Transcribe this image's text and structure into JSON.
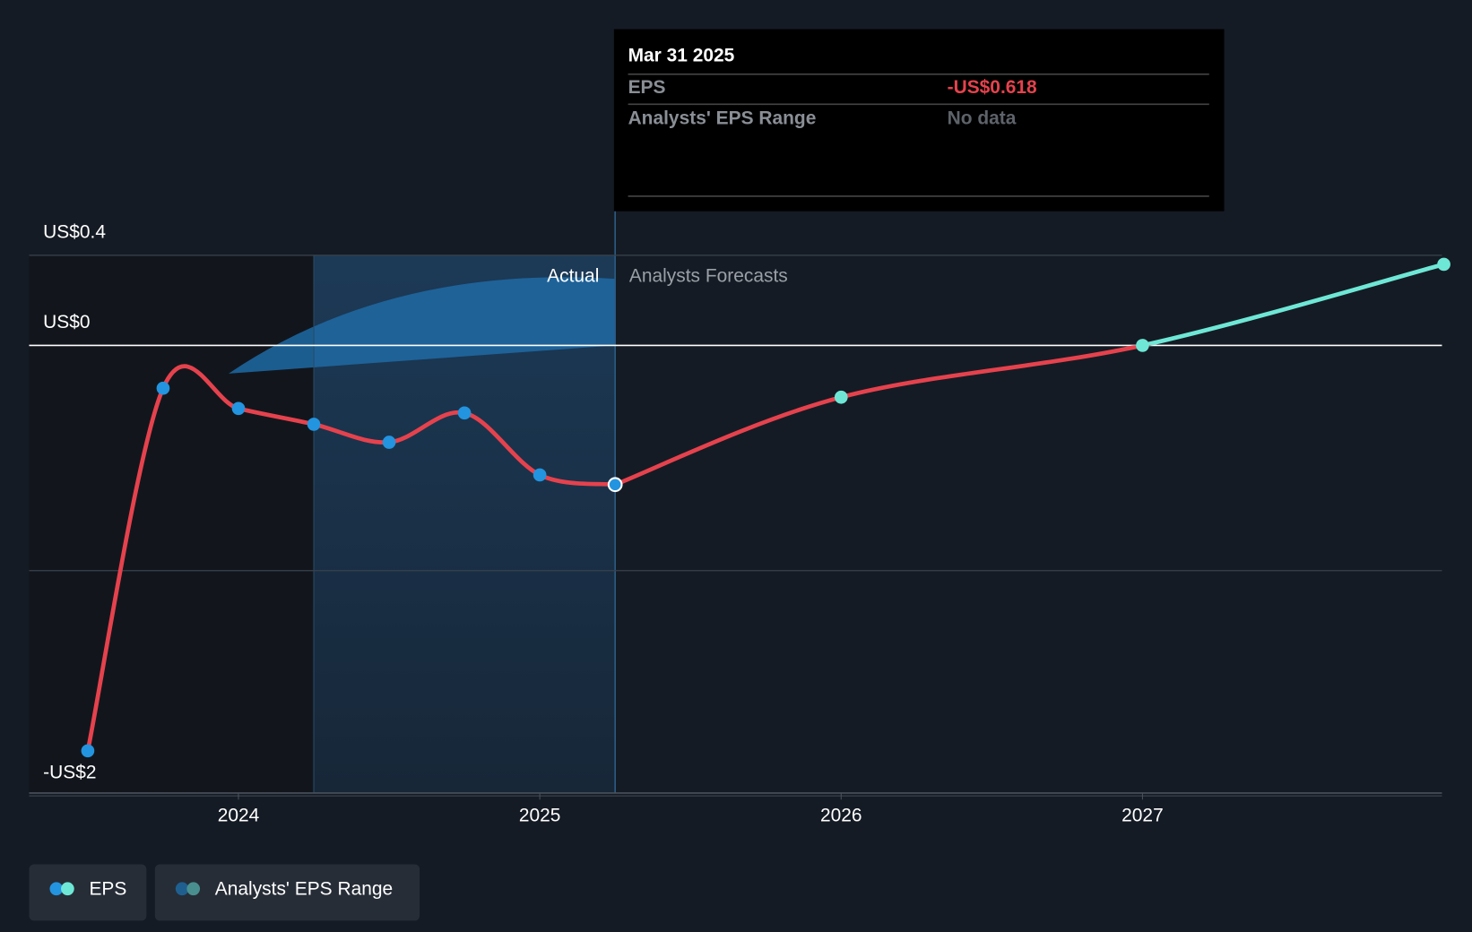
{
  "chart_data": {
    "type": "line",
    "x": [
      2023.5,
      2023.75,
      2024.0,
      2024.25,
      2024.5,
      2024.75,
      2025.0,
      2025.25
    ],
    "series": [
      {
        "name": "EPS",
        "color": "#2394df",
        "line_color": "#e5424d",
        "x": [
          2023.5,
          2023.75,
          2024.0,
          2024.25,
          2024.5,
          2024.75,
          2025.0,
          2025.25
        ],
        "values": [
          -1.8,
          -0.19,
          -0.28,
          -0.35,
          -0.43,
          -0.3,
          -0.575,
          -0.618
        ]
      },
      {
        "name": "EPS",
        "color": "#6ee7d6",
        "line_color": "#6ee7d6",
        "negative_color": "#e5424d",
        "x": [
          2025.25,
          2026.0,
          2027.0,
          2028.0
        ],
        "values": [
          -0.618,
          -0.23,
          0.0,
          0.36
        ]
      }
    ],
    "xlim": [
      2023.3,
      2028.0
    ],
    "xticks": [
      2024,
      2025,
      2026,
      2027
    ],
    "ylim": [
      -2,
      0.4
    ],
    "yticks": [
      {
        "value": 0.4,
        "label": "US$0.4"
      },
      {
        "value": 0,
        "label": "US$0"
      },
      {
        "value": -1,
        "label": null
      },
      {
        "value": -2,
        "label": "-US$2"
      }
    ],
    "grid": true,
    "highlight_xlim": [
      2024.25,
      2025.25
    ],
    "region_labels": {
      "actual": "Actual",
      "forecast": "Analysts Forecasts"
    },
    "tooltip": {
      "title": "Mar 31 2025",
      "rows": [
        {
          "label": "EPS",
          "value": "-US$0.618"
        },
        {
          "label": "Analysts' EPS Range",
          "value": "No data"
        }
      ]
    },
    "legend": [
      "EPS",
      "Analysts' EPS Range"
    ]
  }
}
